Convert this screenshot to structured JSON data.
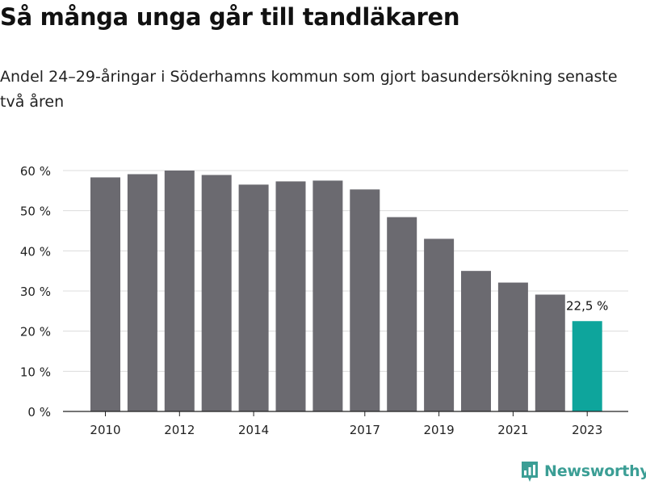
{
  "title": "Så många unga går till tandläkaren",
  "subtitle": "Andel 24–29-åringar i Söderhamns kommun som gjort basundersökning senaste två åren",
  "brand": {
    "name": "Newsworthy",
    "icon": "newsworthy-logo-icon",
    "color": "#3b9e95"
  },
  "chart_data": {
    "type": "bar",
    "categories": [
      "2010",
      "2011",
      "2012",
      "2013",
      "2014",
      "2015",
      "2016",
      "2017",
      "2018",
      "2019",
      "2020",
      "2021",
      "2022",
      "2023"
    ],
    "values": [
      58.3,
      59.1,
      60.0,
      58.9,
      56.5,
      57.3,
      57.5,
      55.3,
      48.4,
      43.0,
      35.0,
      32.1,
      29.1,
      22.5
    ],
    "tick_labels_x": [
      "2010",
      "2012",
      "2014",
      "2017",
      "2019",
      "2021",
      "2023"
    ],
    "tick_labels_y": [
      "0 %",
      "10 %",
      "20 %",
      "30 %",
      "40 %",
      "50 %",
      "60 %"
    ],
    "ylim": [
      0,
      60
    ],
    "grid": true,
    "bar_color": "#6b6a70",
    "highlight_color": "#0ea59c",
    "highlight_index": 13,
    "highlight_label": "22,5 %"
  }
}
